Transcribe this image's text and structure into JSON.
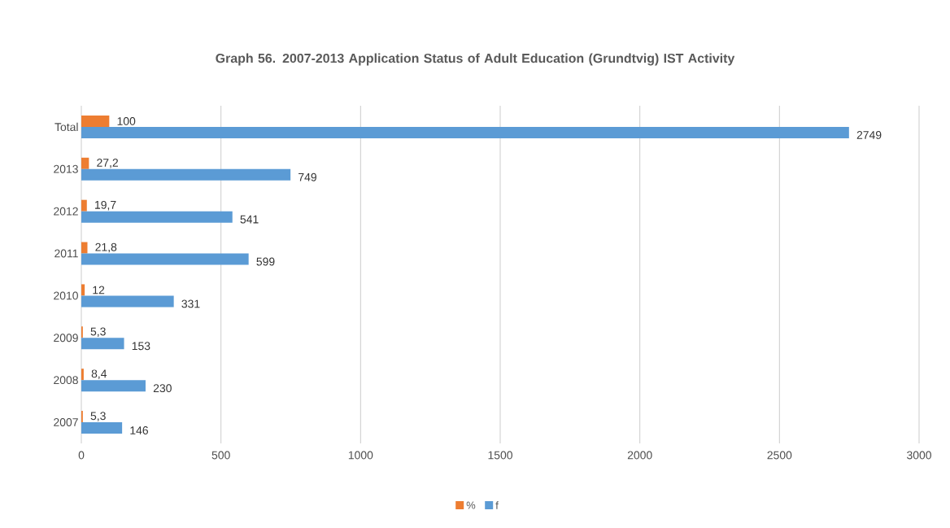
{
  "chart_data": {
    "type": "bar",
    "orientation": "horizontal",
    "title": "Graph 56. 2007-2013 Application Status of Adult Education (Grundtvig) IST Activity",
    "categories": [
      "Total",
      "2013",
      "2012",
      "2011",
      "2010",
      "2009",
      "2008",
      "2007"
    ],
    "series": [
      {
        "name": "%",
        "color": "#ed7d31",
        "values": [
          100,
          27.2,
          19.7,
          21.8,
          12,
          5.3,
          8.4,
          5.3
        ],
        "value_labels": [
          "100",
          "27,2",
          "19,7",
          "21,8",
          "12",
          "5,3",
          "8,4",
          "5,3"
        ]
      },
      {
        "name": "f",
        "color": "#5b9bd5",
        "values": [
          2749,
          749,
          541,
          599,
          331,
          153,
          230,
          146
        ],
        "value_labels": [
          "2749",
          "749",
          "541",
          "599",
          "331",
          "153",
          "230",
          "146"
        ]
      }
    ],
    "xlim": [
      0,
      3000
    ],
    "xticks": [
      0,
      500,
      1000,
      1500,
      2000,
      2500,
      3000
    ],
    "grid": "x",
    "legend": "bottom"
  }
}
